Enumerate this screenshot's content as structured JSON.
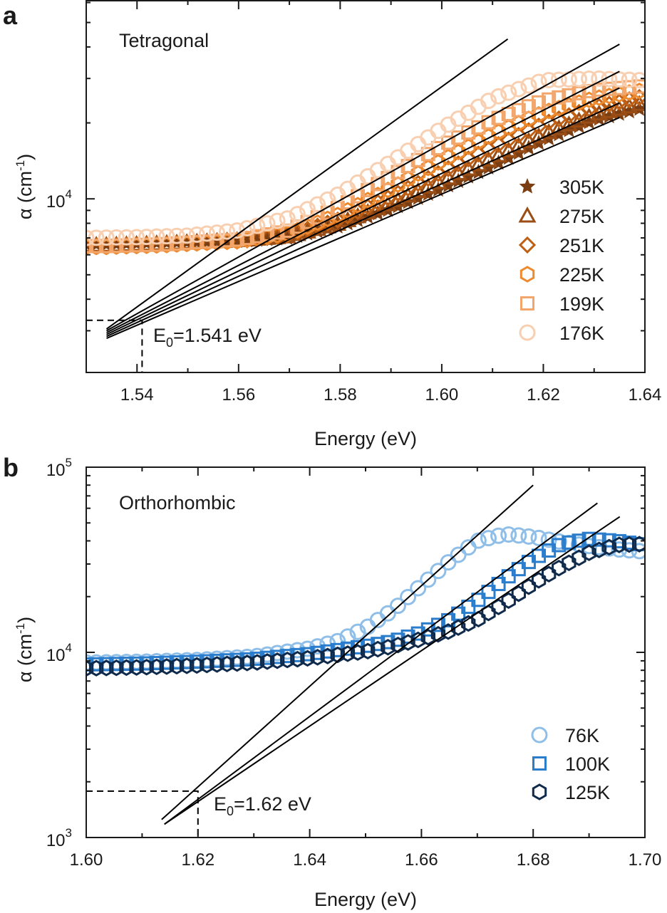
{
  "chart_data": [
    {
      "panel": "a",
      "type": "scatter",
      "title": "Tetragonal",
      "xlabel": "Energy (eV)",
      "ylabel": "α (cm-1)",
      "ylabel_parts": {
        "symbol": "α (cm",
        "sup": "-1",
        "close": ")"
      },
      "xscale": "linear",
      "yscale": "log",
      "xlim": [
        1.53,
        1.64
      ],
      "ylim": [
        2050,
        61000
      ],
      "xticks": [
        1.54,
        1.56,
        1.58,
        1.6,
        1.62,
        1.64
      ],
      "xtick_labels": [
        "1.54",
        "1.56",
        "1.58",
        "1.60",
        "1.62",
        "1.64"
      ],
      "yticks": [
        10000
      ],
      "ytick_labels": [
        {
          "base": "10",
          "exp": "4"
        }
      ],
      "legend_position": "lower-right",
      "annotation": {
        "prefix": "E",
        "sub": "0",
        "suffix": "=1.541 eV",
        "x": 1.541,
        "y": 3300
      },
      "series": [
        {
          "name": "305K",
          "marker": "star",
          "color": "#7a3e12",
          "x": [
            1.534,
            1.545,
            1.56,
            1.57,
            1.58,
            1.59,
            1.6,
            1.61,
            1.62,
            1.63,
            1.64
          ],
          "y": [
            6600,
            6700,
            6800,
            7000,
            7800,
            9100,
            11000,
            13500,
            17000,
            20500,
            23000
          ],
          "fit": {
            "x": [
              1.534,
              1.635
            ],
            "y": [
              2800,
              21000
            ]
          }
        },
        {
          "name": "275K",
          "marker": "triangle",
          "color": "#9a4d14",
          "x": [
            1.534,
            1.545,
            1.56,
            1.57,
            1.58,
            1.59,
            1.6,
            1.61,
            1.62,
            1.63,
            1.64
          ],
          "y": [
            6550,
            6650,
            6850,
            7100,
            8000,
            9600,
            11800,
            14500,
            18000,
            21500,
            24000
          ],
          "fit": {
            "x": [
              1.534,
              1.635
            ],
            "y": [
              2850,
              24000
            ]
          }
        },
        {
          "name": "251K",
          "marker": "diamond",
          "color": "#bf5f14",
          "x": [
            1.534,
            1.545,
            1.56,
            1.57,
            1.58,
            1.59,
            1.6,
            1.61,
            1.62,
            1.63,
            1.64
          ],
          "y": [
            6500,
            6600,
            6800,
            7200,
            8300,
            10200,
            12800,
            16000,
            19800,
            23000,
            25500
          ],
          "fit": {
            "x": [
              1.534,
              1.635
            ],
            "y": [
              2900,
              27500
            ]
          }
        },
        {
          "name": "225K",
          "marker": "hexagon",
          "color": "#ee8a2e",
          "x": [
            1.534,
            1.545,
            1.56,
            1.57,
            1.58,
            1.59,
            1.6,
            1.61,
            1.62,
            1.63,
            1.64
          ],
          "y": [
            6450,
            6550,
            6800,
            7300,
            8700,
            11000,
            14200,
            18000,
            22000,
            25000,
            27000
          ],
          "fit": {
            "x": [
              1.534,
              1.635
            ],
            "y": [
              2950,
              32000
            ]
          }
        },
        {
          "name": "199K",
          "marker": "square",
          "color": "#f2a66b",
          "x": [
            1.534,
            1.545,
            1.56,
            1.57,
            1.58,
            1.59,
            1.6,
            1.61,
            1.62,
            1.63,
            1.64
          ],
          "y": [
            6500,
            6600,
            6900,
            7500,
            9300,
            12300,
            16200,
            20500,
            24500,
            27000,
            28000
          ],
          "fit": {
            "x": [
              1.534,
              1.635
            ],
            "y": [
              3000,
              41000
            ]
          }
        },
        {
          "name": "176K",
          "marker": "circle",
          "color": "#f8cfb0",
          "x": [
            1.53,
            1.54,
            1.55,
            1.56,
            1.57,
            1.58,
            1.59,
            1.6,
            1.61,
            1.62,
            1.63,
            1.64
          ],
          "y": [
            7000,
            7050,
            7150,
            7500,
            8400,
            10500,
            14000,
            19000,
            25000,
            29500,
            30000,
            29500
          ],
          "fit": {
            "x": [
              1.534,
              1.613
            ],
            "y": [
              3050,
              43000
            ]
          }
        }
      ]
    },
    {
      "panel": "b",
      "type": "scatter",
      "title": "Orthorhombic",
      "xlabel": "Energy (eV)",
      "ylabel": "α (cm-1)",
      "ylabel_parts": {
        "symbol": "α (cm",
        "sup": "-1",
        "close": ")"
      },
      "xscale": "linear",
      "yscale": "log",
      "xlim": [
        1.6,
        1.7
      ],
      "ylim": [
        1000,
        100000
      ],
      "xticks": [
        1.6,
        1.62,
        1.64,
        1.66,
        1.68,
        1.7
      ],
      "xtick_labels": [
        "1.60",
        "1.62",
        "1.64",
        "1.66",
        "1.68",
        "1.70"
      ],
      "yticks": [
        1000,
        10000,
        100000
      ],
      "ytick_labels": [
        {
          "base": "10",
          "exp": "3"
        },
        {
          "base": "10",
          "exp": "4"
        },
        {
          "base": "10",
          "exp": "5"
        }
      ],
      "legend_position": "lower-right",
      "annotation": {
        "prefix": "E",
        "sub": "0",
        "suffix": "=1.62 eV",
        "x": 1.62,
        "y": 1780
      },
      "series": [
        {
          "name": "76K",
          "marker": "circle",
          "color": "#8fbfe8",
          "x": [
            1.6,
            1.61,
            1.62,
            1.63,
            1.64,
            1.645,
            1.65,
            1.655,
            1.66,
            1.665,
            1.67,
            1.675,
            1.68,
            1.685,
            1.69,
            1.695,
            1.7
          ],
          "y": [
            8800,
            8900,
            9100,
            9500,
            10500,
            11500,
            13500,
            17000,
            23000,
            31000,
            40000,
            43500,
            42000,
            39500,
            37500,
            36000,
            35000
          ],
          "fit": {
            "x": [
              1.6135,
              1.68
            ],
            "y": [
              1250,
              80000
            ]
          }
        },
        {
          "name": "100K",
          "marker": "square",
          "color": "#2a7ccc",
          "x": [
            1.6,
            1.61,
            1.62,
            1.63,
            1.64,
            1.65,
            1.655,
            1.66,
            1.665,
            1.67,
            1.675,
            1.68,
            1.685,
            1.69,
            1.695,
            1.7
          ],
          "y": [
            8600,
            8700,
            8900,
            9200,
            9800,
            10800,
            11500,
            12800,
            15000,
            19000,
            25000,
            32000,
            38500,
            41000,
            40000,
            38000
          ],
          "fit": {
            "x": [
              1.614,
              1.6915
            ],
            "y": [
              1180,
              64000
            ]
          }
        },
        {
          "name": "125K",
          "marker": "hexagon",
          "color": "#0f2a4a",
          "x": [
            1.6,
            1.61,
            1.62,
            1.63,
            1.64,
            1.65,
            1.655,
            1.66,
            1.665,
            1.67,
            1.675,
            1.68,
            1.685,
            1.69,
            1.695,
            1.7
          ],
          "y": [
            8200,
            8300,
            8500,
            8800,
            9300,
            10100,
            10800,
            11800,
            13000,
            15000,
            18500,
            23500,
            29000,
            34500,
            38000,
            38500
          ],
          "fit": {
            "x": [
              1.614,
              1.6955
            ],
            "y": [
              1180,
              54000
            ]
          }
        }
      ]
    }
  ]
}
